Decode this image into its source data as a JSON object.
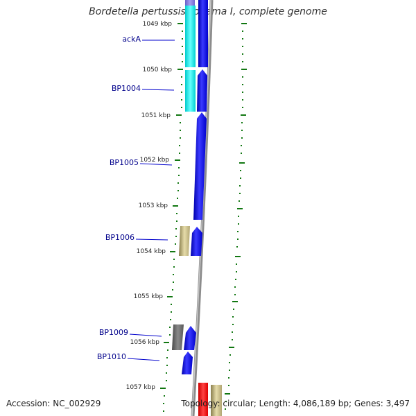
{
  "title": "Bordetella pertussis Tohama I, complete genome",
  "accession_text": "Accession: NC_002929",
  "topology_text": "Topology: circular; Length: 4,086,189 bp; Genes: 3,497",
  "colors": {
    "backbone": "#8c8c8c",
    "gene_blue": "#0000ee",
    "gene_cyan": "#00e5e5",
    "gene_khaki": "#c8bc84",
    "gene_gray": "#6e6e6e",
    "gene_red": "#ee0000",
    "gene_purple": "#7b6fd6",
    "tick_green": "#117711",
    "label_blue": "#00008b"
  },
  "ticks": [
    {
      "label": "1049 kbp"
    },
    {
      "label": "1050 kbp"
    },
    {
      "label": "1051 kbp"
    },
    {
      "label": "1052 kbp"
    },
    {
      "label": "1053 kbp"
    },
    {
      "label": "1054 kbp"
    },
    {
      "label": "1055 kbp"
    },
    {
      "label": "1056 kbp"
    },
    {
      "label": "1057 kbp"
    }
  ],
  "gene_labels": [
    {
      "name": "ackA"
    },
    {
      "name": "BP1004"
    },
    {
      "name": "BP1005"
    },
    {
      "name": "BP1006"
    },
    {
      "name": "BP1009"
    },
    {
      "name": "BP1010"
    }
  ]
}
